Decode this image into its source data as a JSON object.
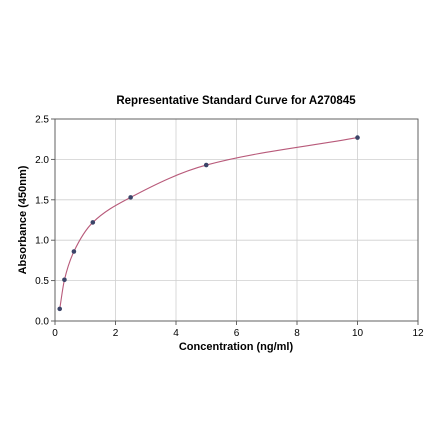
{
  "chart_data": {
    "type": "scatter",
    "title": "Representative Standard Curve for A270845",
    "xlabel": "Concentration (ng/ml)",
    "ylabel": "Absorbance (450nm)",
    "xlim": [
      0,
      12
    ],
    "ylim": [
      0,
      2.5
    ],
    "xticks": [
      0,
      2,
      4,
      6,
      8,
      10,
      12
    ],
    "yticks": [
      0.0,
      0.5,
      1.0,
      1.5,
      2.0,
      2.5
    ],
    "xtick_labels": [
      "0",
      "2",
      "4",
      "6",
      "8",
      "10",
      "12"
    ],
    "ytick_labels": [
      "0.0",
      "0.5",
      "1.0",
      "1.5",
      "2.0",
      "2.5"
    ],
    "grid": true,
    "points": [
      {
        "x": 0.156,
        "y": 0.15
      },
      {
        "x": 0.3125,
        "y": 0.51
      },
      {
        "x": 0.625,
        "y": 0.86
      },
      {
        "x": 1.25,
        "y": 1.22
      },
      {
        "x": 2.5,
        "y": 1.53
      },
      {
        "x": 5,
        "y": 1.93
      },
      {
        "x": 10,
        "y": 2.27
      }
    ],
    "fit_curve": "smooth fit through points",
    "point_color": "#3b4468",
    "curve_color": "#b85a7a"
  }
}
